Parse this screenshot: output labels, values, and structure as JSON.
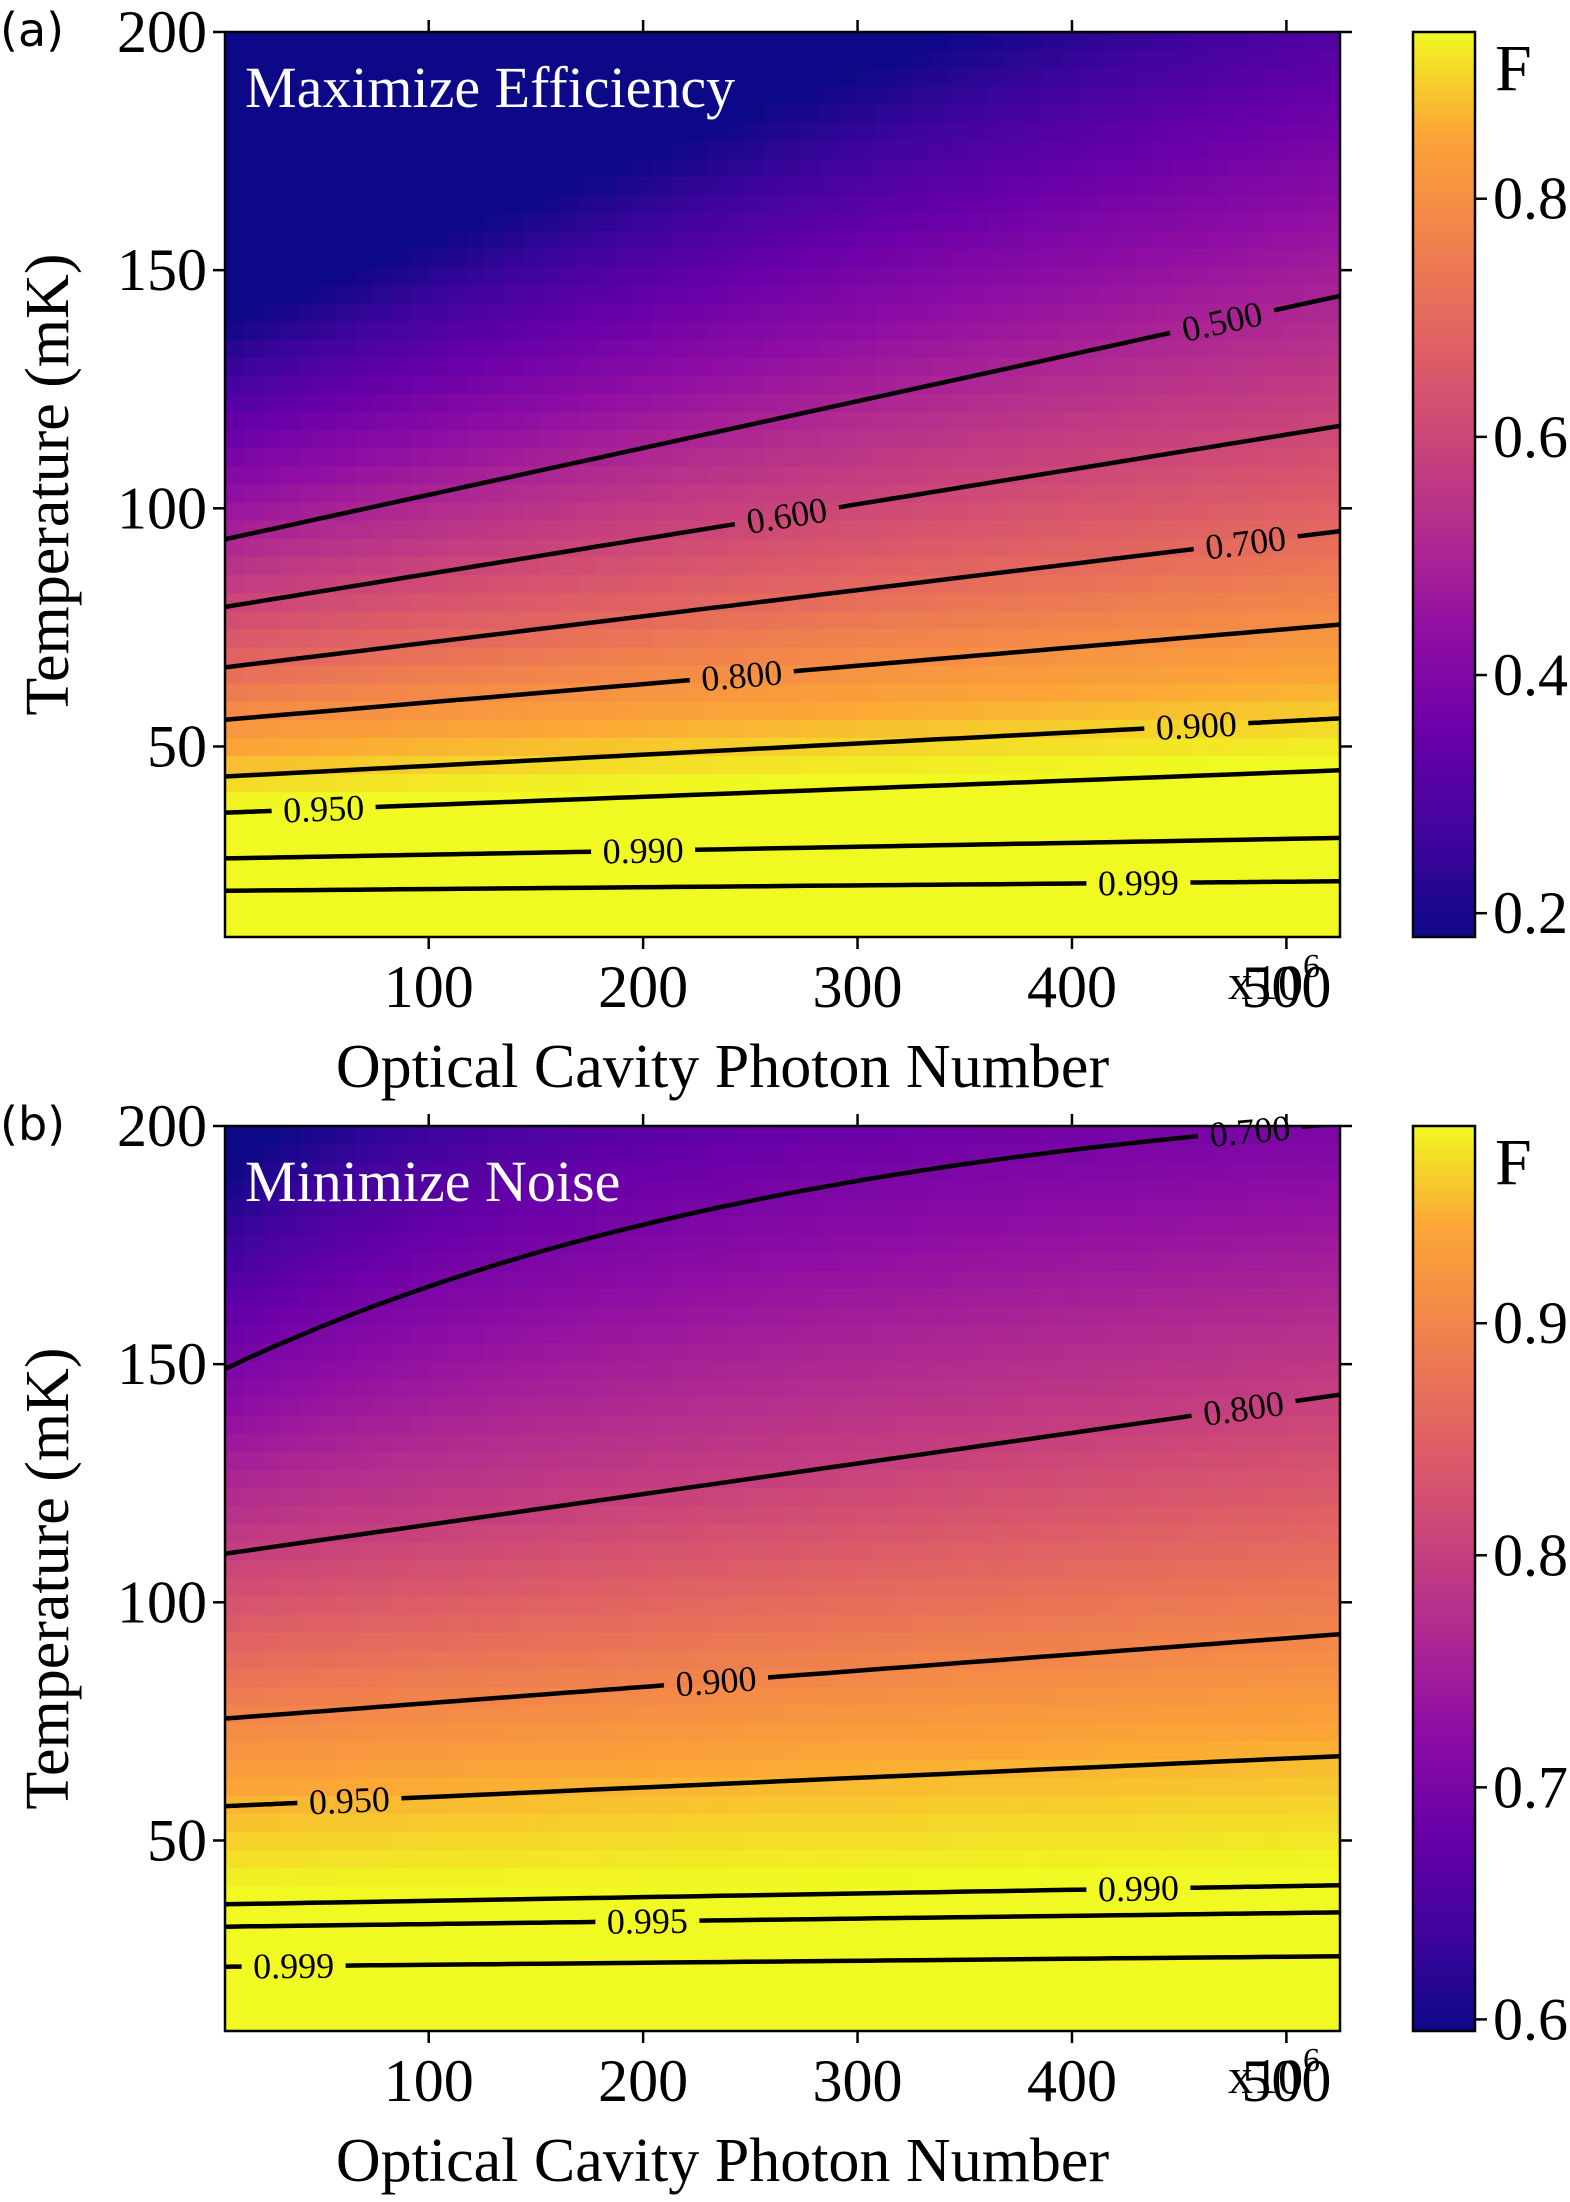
{
  "chart_data": [
    {
      "type": "heatmap",
      "panel_label": "(a)",
      "annotation": "Maximize Efficiency",
      "xlabel": "Optical Cavity Photon Number",
      "ylabel": "Temperature (mK)",
      "x_multiplier": "x10",
      "x_multiplier_exp": "6",
      "xlim": [
        5,
        525
      ],
      "ylim": [
        10,
        200
      ],
      "xticks": [
        100,
        200,
        300,
        400,
        500
      ],
      "yticks": [
        50,
        100,
        150,
        200
      ],
      "colorbar": {
        "title": "F",
        "range": [
          0.18,
          0.94
        ],
        "ticks": [
          0.2,
          0.4,
          0.6,
          0.8
        ],
        "tick_labels": [
          "0.2",
          "0.4",
          "0.6",
          "0.8"
        ],
        "colormap": "plasma"
      },
      "contours": [
        {
          "level": "0.500",
          "y_start": 93.5,
          "y_end": 144.6,
          "label_x": 470
        },
        {
          "level": "0.600",
          "y_start": 79.3,
          "y_end": 117.3,
          "label_x": 267
        },
        {
          "level": "0.700",
          "y_start": 66.6,
          "y_end": 95.2,
          "label_x": 481
        },
        {
          "level": "0.800",
          "y_start": 55.6,
          "y_end": 75.6,
          "label_x": 246
        },
        {
          "level": "0.900",
          "y_start": 43.7,
          "y_end": 55.9,
          "label_x": 458
        },
        {
          "level": "0.950",
          "y_start": 36.1,
          "y_end": 45.0,
          "label_x": 51
        },
        {
          "level": "0.990",
          "y_start": 26.5,
          "y_end": 30.8,
          "label_x": 200
        },
        {
          "level": "0.999",
          "y_start": 19.7,
          "y_end": 21.7,
          "label_x": 431
        }
      ]
    },
    {
      "type": "heatmap",
      "panel_label": "(b)",
      "annotation": "Minimize Noise",
      "xlabel": "Optical Cavity Photon Number",
      "ylabel": "Temperature (mK)",
      "x_multiplier": "x10",
      "x_multiplier_exp": "6",
      "xlim": [
        5,
        525
      ],
      "ylim": [
        10,
        200
      ],
      "xticks": [
        100,
        200,
        300,
        400,
        500
      ],
      "yticks": [
        50,
        100,
        150,
        200
      ],
      "colorbar": {
        "title": "F",
        "range": [
          0.595,
          0.985
        ],
        "ticks": [
          0.6,
          0.7,
          0.8,
          0.9
        ],
        "tick_labels": [
          "0.6",
          "0.7",
          "0.8",
          "0.9"
        ],
        "colormap": "plasma"
      },
      "contours": [
        {
          "level": "0.700",
          "y_start": 149.0,
          "y_end": 200.5,
          "label_x": 483,
          "curved": true
        },
        {
          "level": "0.800",
          "y_start": 110.2,
          "y_end": 143.6,
          "label_x": 480
        },
        {
          "level": "0.900",
          "y_start": 75.6,
          "y_end": 93.3,
          "label_x": 234
        },
        {
          "level": "0.950",
          "y_start": 57.2,
          "y_end": 67.7,
          "label_x": 63
        },
        {
          "level": "0.990",
          "y_start": 36.6,
          "y_end": 40.6,
          "label_x": 431
        },
        {
          "level": "0.995",
          "y_start": 31.9,
          "y_end": 34.9,
          "label_x": 202
        },
        {
          "level": "0.999",
          "y_start": 23.5,
          "y_end": 25.7,
          "label_x": 37
        }
      ]
    }
  ]
}
